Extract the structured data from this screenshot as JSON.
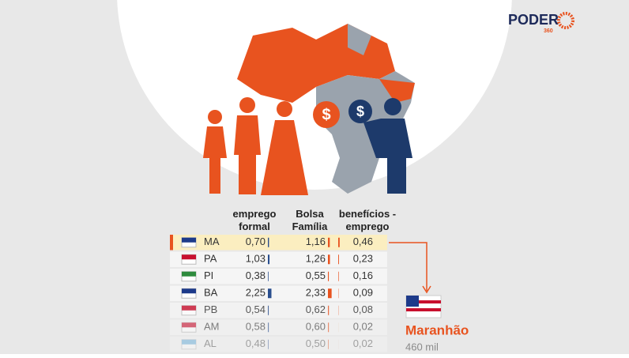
{
  "logo": {
    "name": "PODER",
    "sub": "360"
  },
  "table": {
    "columns": [
      "emprego formal",
      "Bolsa Família",
      "benefícios - emprego"
    ],
    "rows": [
      {
        "state": "MA",
        "cells": [
          {
            "value": 0.7,
            "label": "0,70"
          },
          {
            "value": 1.16,
            "label": "1,16"
          },
          {
            "value": 0.46,
            "label": "0,46"
          }
        ]
      },
      {
        "state": "PA",
        "cells": [
          {
            "value": 1.03,
            "label": "1,03"
          },
          {
            "value": 1.26,
            "label": "1,26"
          },
          {
            "value": 0.23,
            "label": "0,23"
          }
        ]
      },
      {
        "state": "PI",
        "cells": [
          {
            "value": 0.38,
            "label": "0,38"
          },
          {
            "value": 0.55,
            "label": "0,55"
          },
          {
            "value": 0.16,
            "label": "0,16"
          }
        ]
      },
      {
        "state": "BA",
        "cells": [
          {
            "value": 2.25,
            "label": "2,25"
          },
          {
            "value": 2.33,
            "label": "2,33"
          },
          {
            "value": 0.09,
            "label": "0,09"
          }
        ]
      },
      {
        "state": "PB",
        "cells": [
          {
            "value": 0.54,
            "label": "0,54"
          },
          {
            "value": 0.62,
            "label": "0,62"
          },
          {
            "value": 0.08,
            "label": "0,08"
          }
        ]
      },
      {
        "state": "AM",
        "cells": [
          {
            "value": 0.58,
            "label": "0,58"
          },
          {
            "value": 0.6,
            "label": "0,60"
          },
          {
            "value": 0.02,
            "label": "0,02"
          }
        ]
      },
      {
        "state": "AL",
        "cells": [
          {
            "value": 0.48,
            "label": "0,48"
          },
          {
            "value": 0.5,
            "label": "0,50"
          },
          {
            "value": 0.02,
            "label": "0,02"
          }
        ]
      }
    ]
  },
  "callout": {
    "state_name": "Maranhão",
    "population": "460 mil"
  }
}
